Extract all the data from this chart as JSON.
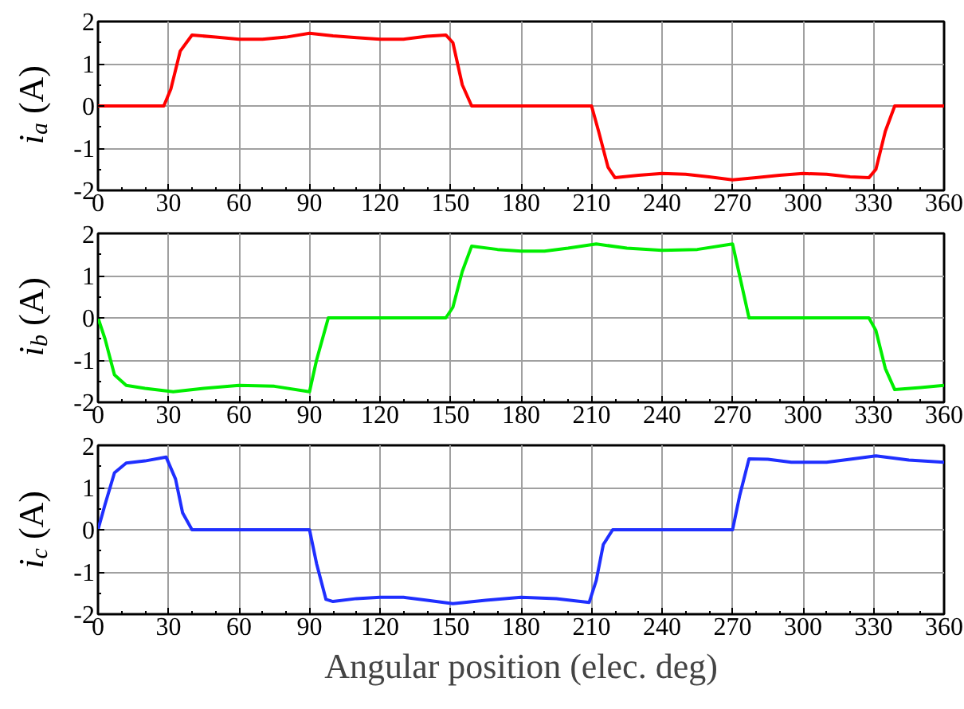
{
  "chart_data": [
    {
      "type": "line",
      "ylabel": "i$_{a}$ (A)",
      "xlim": [
        0,
        360
      ],
      "ylim": [
        -2,
        2
      ],
      "xticks": [
        0,
        30,
        60,
        90,
        120,
        150,
        180,
        210,
        240,
        270,
        300,
        330,
        360
      ],
      "yticks": [
        -2,
        -1,
        0,
        1,
        2
      ],
      "grid": true,
      "marker": "none",
      "line_style": "solid",
      "series": [
        {
          "color": "#ff0000",
          "x": [
            0,
            28,
            31,
            35,
            40,
            50,
            60,
            70,
            80,
            90,
            100,
            110,
            120,
            130,
            140,
            148,
            151,
            155,
            159,
            210,
            213,
            217,
            220,
            230,
            240,
            250,
            260,
            270,
            280,
            290,
            300,
            310,
            320,
            328,
            331,
            335,
            339,
            360
          ],
          "values": [
            0,
            0,
            0.4,
            1.3,
            1.68,
            1.63,
            1.58,
            1.58,
            1.63,
            1.72,
            1.66,
            1.62,
            1.58,
            1.58,
            1.65,
            1.68,
            1.5,
            0.5,
            0,
            0,
            -0.6,
            -1.45,
            -1.7,
            -1.64,
            -1.6,
            -1.62,
            -1.68,
            -1.75,
            -1.7,
            -1.64,
            -1.6,
            -1.62,
            -1.68,
            -1.7,
            -1.5,
            -0.6,
            0,
            0
          ]
        }
      ]
    },
    {
      "type": "line",
      "ylabel": "i$_{b}$ (A)",
      "xlim": [
        0,
        360
      ],
      "ylim": [
        -2,
        2
      ],
      "xticks": [
        0,
        30,
        60,
        90,
        120,
        150,
        180,
        210,
        240,
        270,
        300,
        330,
        360
      ],
      "yticks": [
        -2,
        -1,
        0,
        1,
        2
      ],
      "grid": true,
      "marker": "none",
      "line_style": "solid",
      "series": [
        {
          "color": "#00ee00",
          "x": [
            0,
            3,
            7,
            12,
            20,
            32,
            45,
            60,
            75,
            90,
            93,
            98,
            148,
            151,
            155,
            159,
            170,
            180,
            190,
            200,
            212,
            225,
            240,
            255,
            270,
            273,
            277,
            328,
            331,
            335,
            339,
            350,
            360
          ],
          "values": [
            0,
            -0.5,
            -1.35,
            -1.6,
            -1.67,
            -1.75,
            -1.67,
            -1.6,
            -1.62,
            -1.75,
            -1,
            0,
            0,
            0.25,
            1.1,
            1.7,
            1.62,
            1.58,
            1.58,
            1.65,
            1.75,
            1.65,
            1.6,
            1.62,
            1.75,
            1,
            0,
            0,
            -0.3,
            -1.2,
            -1.7,
            -1.65,
            -1.6
          ]
        }
      ]
    },
    {
      "type": "line",
      "ylabel": "i$_{c}$ (A)",
      "xlabel": "Angular position (elec. deg)",
      "xlim": [
        0,
        360
      ],
      "ylim": [
        -2,
        2
      ],
      "xticks": [
        0,
        30,
        60,
        90,
        120,
        150,
        180,
        210,
        240,
        270,
        300,
        330,
        360
      ],
      "yticks": [
        -2,
        -1,
        0,
        1,
        2
      ],
      "grid": true,
      "marker": "none",
      "line_style": "solid",
      "series": [
        {
          "color": "#1f2fff",
          "x": [
            0,
            3,
            7,
            12,
            20,
            29,
            33,
            36,
            40,
            90,
            93,
            97,
            100,
            110,
            120,
            130,
            140,
            151,
            165,
            180,
            195,
            209,
            212,
            215,
            219,
            270,
            273,
            277,
            285,
            295,
            310,
            320,
            331,
            345,
            360
          ],
          "values": [
            0,
            0.6,
            1.35,
            1.58,
            1.63,
            1.72,
            1.2,
            0.4,
            0,
            0,
            -0.8,
            -1.65,
            -1.7,
            -1.63,
            -1.6,
            -1.6,
            -1.67,
            -1.75,
            -1.67,
            -1.6,
            -1.63,
            -1.72,
            -1.2,
            -0.35,
            0,
            0,
            0.8,
            1.68,
            1.67,
            1.6,
            1.6,
            1.67,
            1.75,
            1.65,
            1.6
          ]
        }
      ]
    }
  ]
}
